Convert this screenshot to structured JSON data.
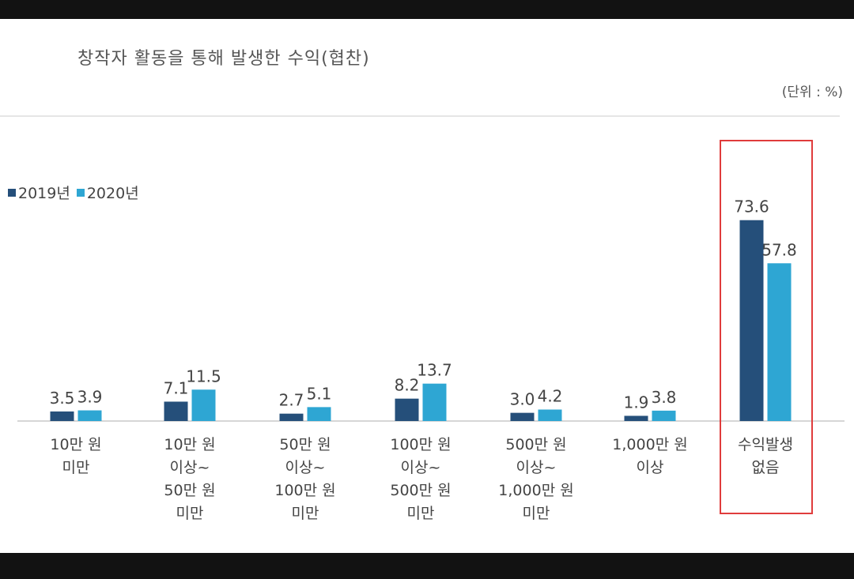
{
  "title": "창작자 활동을 통해 발생한 수익(협찬)",
  "unit": "(단위 : %)",
  "colors": {
    "s2019": "#254f7a",
    "s2020": "#2ea6d3",
    "highlight": "#e03c3c"
  },
  "chart_data": {
    "type": "bar",
    "title": "창작자 활동을 통해 발생한 수익(협찬)",
    "unit": "(단위 : %)",
    "categories": [
      [
        "10만 원",
        "미만"
      ],
      [
        "10만 원",
        "이상~",
        "50만 원",
        "미만"
      ],
      [
        "50만 원",
        "이상~",
        "100만 원",
        "미만"
      ],
      [
        "100만 원",
        "이상~",
        "500만 원",
        "미만"
      ],
      [
        "500만 원",
        "이상~",
        "1,000만 원",
        "미만"
      ],
      [
        "1,000만 원",
        "이상"
      ],
      [
        "수익발생",
        "없음"
      ]
    ],
    "series": [
      {
        "name": "2019년",
        "values": [
          3.5,
          7.1,
          2.7,
          8.2,
          3.0,
          1.9,
          73.6
        ],
        "labels": [
          "3.5",
          "7.1",
          "2.7",
          "8.2",
          "3.0",
          "1.9",
          "73.6"
        ]
      },
      {
        "name": "2020년",
        "values": [
          3.9,
          11.5,
          5.1,
          13.7,
          4.2,
          3.8,
          57.8
        ],
        "labels": [
          "3.9",
          "11.5",
          "5.1",
          "13.7",
          "4.2",
          "3.8",
          "57.8"
        ]
      }
    ],
    "legend_position": "top-left",
    "highlighted_category": "수익발생 없음",
    "grid": false
  }
}
